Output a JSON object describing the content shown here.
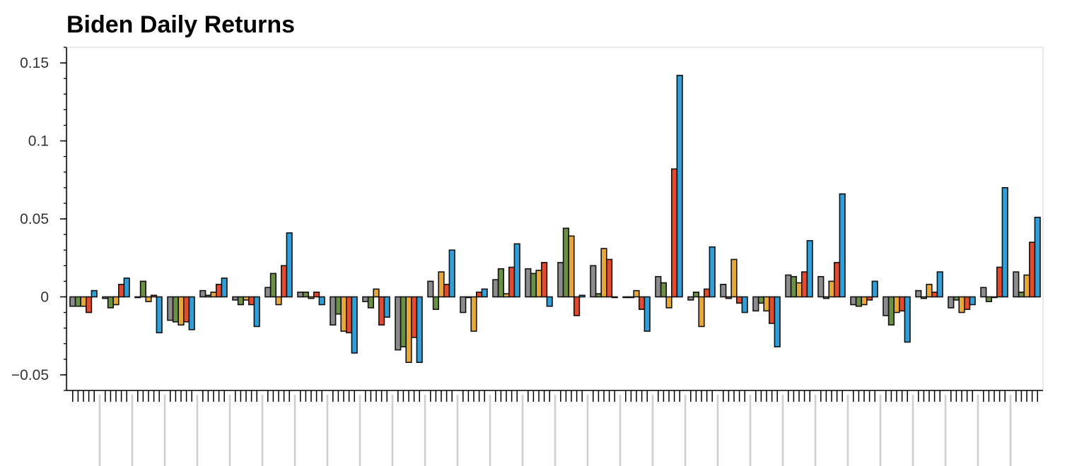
{
  "chart_data": {
    "type": "bar",
    "title": "Biden Daily Returns",
    "xlabel": "",
    "ylabel": "",
    "ylim": [
      -0.06,
      0.16
    ],
    "yticks": [
      -0.05,
      0,
      0.05,
      0.1,
      0.15
    ],
    "ytick_labels": [
      "−0.05",
      "0",
      "0.05",
      "0.1",
      "0.15"
    ],
    "grid": false,
    "legend": "none",
    "group_count": 30,
    "series": [
      {
        "color": "#8c8c8c",
        "values": [
          -0.006,
          -0.001,
          0.0,
          -0.015,
          0.004,
          -0.002,
          0.006,
          0.003,
          -0.018,
          -0.003,
          -0.034,
          0.01,
          -0.01,
          0.011,
          0.018,
          0.022,
          0.02,
          0.0,
          0.013,
          -0.002,
          0.008,
          -0.009,
          0.014,
          0.013,
          -0.005,
          -0.012,
          0.004,
          -0.007,
          0.006,
          0.016
        ]
      },
      {
        "color": "#6a8f45",
        "values": [
          -0.006,
          -0.007,
          0.01,
          -0.016,
          0.001,
          -0.005,
          0.015,
          0.003,
          -0.011,
          -0.007,
          -0.032,
          -0.008,
          0.0,
          0.018,
          0.015,
          0.044,
          0.002,
          0.0,
          0.009,
          0.003,
          -0.001,
          -0.004,
          0.013,
          -0.001,
          -0.006,
          -0.018,
          -0.001,
          -0.002,
          -0.003,
          0.003
        ]
      },
      {
        "color": "#e8a838",
        "values": [
          -0.006,
          -0.005,
          -0.003,
          -0.018,
          0.003,
          -0.002,
          -0.005,
          -0.001,
          -0.022,
          0.005,
          -0.042,
          0.016,
          -0.022,
          0.002,
          0.017,
          0.039,
          0.031,
          0.004,
          -0.007,
          -0.019,
          0.024,
          -0.009,
          0.009,
          0.01,
          -0.005,
          -0.01,
          0.008,
          -0.01,
          0.0,
          0.014
        ]
      },
      {
        "color": "#e8482c",
        "values": [
          -0.01,
          0.008,
          0.001,
          -0.016,
          0.008,
          -0.005,
          0.02,
          0.003,
          -0.023,
          -0.018,
          -0.026,
          0.008,
          0.003,
          0.019,
          0.022,
          -0.012,
          0.024,
          -0.008,
          0.082,
          0.005,
          -0.004,
          -0.017,
          0.016,
          0.022,
          -0.002,
          -0.009,
          0.003,
          -0.008,
          0.019,
          0.035
        ]
      },
      {
        "color": "#2e9fd8",
        "values": [
          0.004,
          0.012,
          -0.023,
          -0.021,
          0.012,
          -0.019,
          0.041,
          -0.005,
          -0.036,
          -0.013,
          -0.042,
          0.03,
          0.005,
          0.034,
          -0.006,
          0.001,
          0.0,
          -0.022,
          0.142,
          0.032,
          -0.01,
          -0.032,
          0.036,
          0.066,
          0.01,
          -0.029,
          0.016,
          -0.005,
          0.07,
          0.051
        ]
      }
    ]
  }
}
